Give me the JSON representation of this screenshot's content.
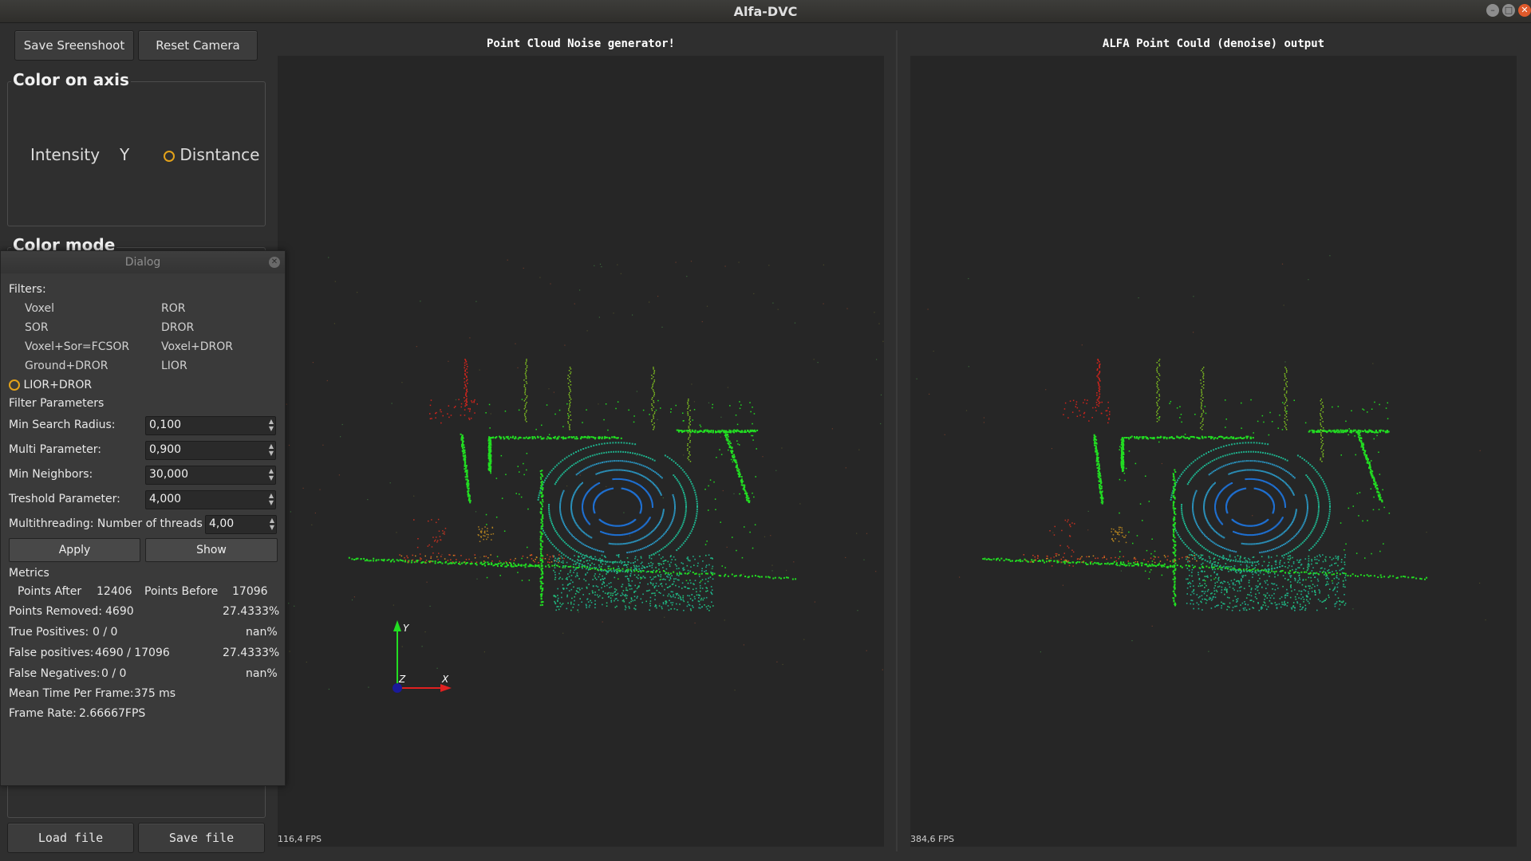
{
  "window": {
    "title": "Alfa-DVC"
  },
  "toolbar": {
    "save_screenshot": "Save Sreenshoot",
    "reset_camera": "Reset Camera"
  },
  "color_axis": {
    "title": "Color on axis",
    "options": [
      "Intensity",
      "Y",
      "Disntance"
    ],
    "selected": "Disntance"
  },
  "color_mode": {
    "title": "Color mode"
  },
  "files": {
    "load": "Load file",
    "save": "Save file"
  },
  "views": [
    {
      "title": "Point Cloud Noise generator!",
      "fps": "116,4 FPS"
    },
    {
      "title": "ALFA Point Could (denoise) output",
      "fps": "384,6 FPS"
    }
  ],
  "axes": {
    "x": "X",
    "y": "Y",
    "z": "Z"
  },
  "dialog": {
    "title": "Dialog",
    "filters_label": "Filters:",
    "filters": [
      "Voxel",
      "ROR",
      "SOR",
      "DROR",
      "Voxel+Sor=FCSOR",
      "Voxel+DROR",
      "Ground+DROR",
      "LIOR",
      "LIOR+DROR"
    ],
    "selected_filter": "LIOR+DROR",
    "params_label": "Filter Parameters",
    "params": [
      {
        "label": "Min Search Radius:",
        "value": "0,100"
      },
      {
        "label": "Multi Parameter:",
        "value": "0,900"
      },
      {
        "label": "Min Neighbors:",
        "value": "30,000"
      },
      {
        "label": "Treshold Parameter:",
        "value": "4,000"
      }
    ],
    "threads_label": "Multithreading: Number of threads",
    "threads_value": "4,00",
    "apply": "Apply",
    "show": "Show",
    "metrics_label": "Metrics",
    "points_after_label": "Points After",
    "points_after": "12406",
    "points_before_label": "Points Before",
    "points_before": "17096",
    "points_removed_label": "Points Removed:",
    "points_removed": "4690",
    "points_removed_pct": "27.4333%",
    "true_pos_label": "True Positives:",
    "true_pos": "0  /  0",
    "true_pos_pct": "nan%",
    "false_pos_label": "False positives:",
    "false_pos": "4690  /  17096",
    "false_pos_pct": "27.4333%",
    "false_neg_label": "False Negatives:",
    "false_neg": "0  /  0",
    "false_neg_pct": "nan%",
    "mean_time_label": "Mean Time Per Frame:",
    "mean_time": "375  ms",
    "frame_rate_label": "Frame Rate:",
    "frame_rate": "2.66667FPS"
  },
  "colors": {
    "accent": "#e3a21a",
    "green": "#22dd22",
    "cyan": "#1fae8a",
    "blue": "#1e6fd0",
    "red": "#d0241c"
  }
}
